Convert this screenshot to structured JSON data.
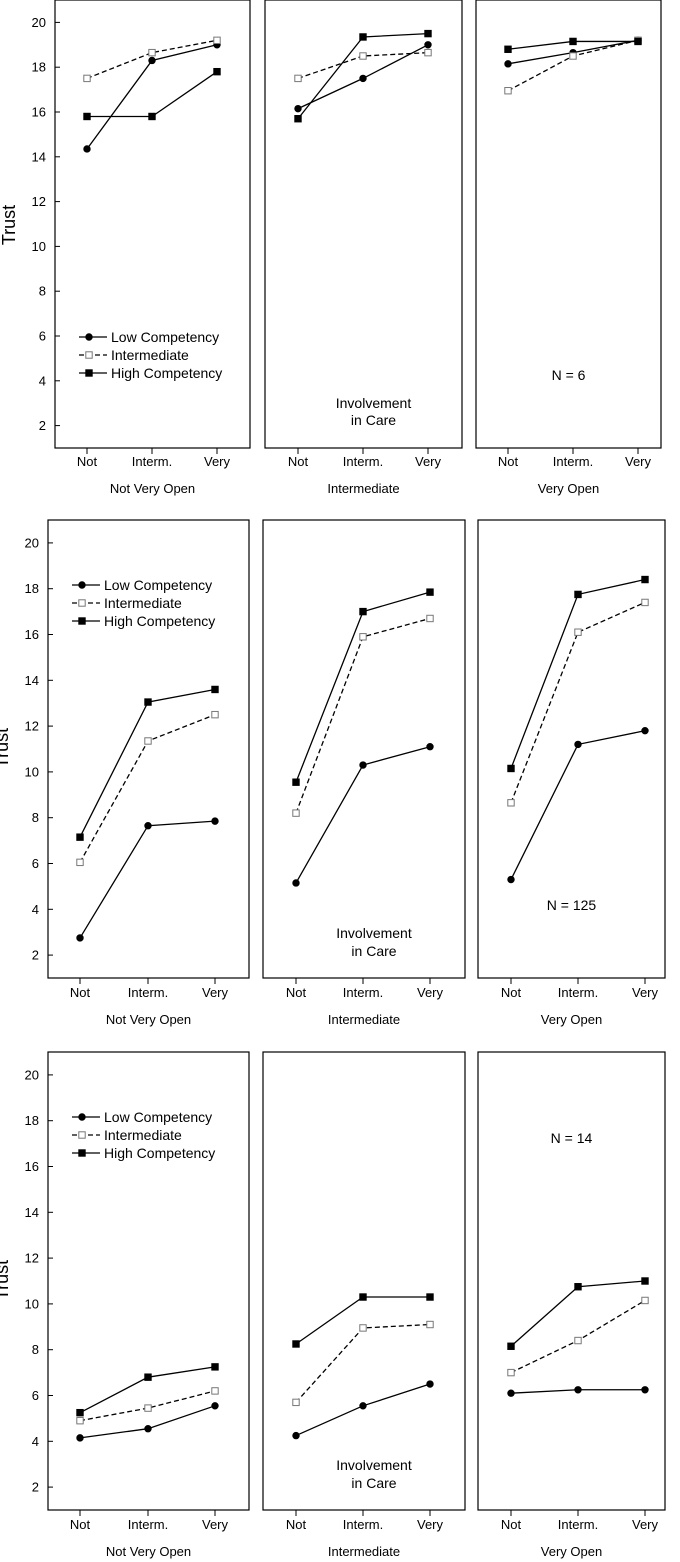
{
  "chart_data": [
    {
      "type": "line",
      "ylabel": "Trust",
      "ylim": [
        1,
        21
      ],
      "yticks": [
        2,
        4,
        6,
        8,
        10,
        12,
        14,
        16,
        18,
        20
      ],
      "categories": [
        "Not",
        "Interm.",
        "Very"
      ],
      "legend": {
        "placement": "lower-left",
        "entries": [
          "Low Competency",
          "Intermediate",
          "High Competency"
        ]
      },
      "center_annotation": [
        "Involvement",
        "in Care"
      ],
      "note": "N = 6",
      "panels": [
        {
          "group_label": "Not Very Open",
          "series": [
            {
              "name": "Low Competency",
              "values": [
                14.35,
                18.3,
                19.0
              ]
            },
            {
              "name": "Intermediate",
              "values": [
                17.5,
                18.65,
                19.2
              ]
            },
            {
              "name": "High Competency",
              "values": [
                15.8,
                15.8,
                17.8
              ]
            }
          ]
        },
        {
          "group_label": "Intermediate",
          "series": [
            {
              "name": "Low Competency",
              "values": [
                16.15,
                17.5,
                19.0
              ]
            },
            {
              "name": "Intermediate",
              "values": [
                17.5,
                18.5,
                18.65
              ]
            },
            {
              "name": "High Competency",
              "values": [
                15.7,
                19.35,
                19.5
              ]
            }
          ]
        },
        {
          "group_label": "Very Open",
          "series": [
            {
              "name": "Low Competency",
              "values": [
                18.15,
                18.65,
                19.2
              ]
            },
            {
              "name": "Intermediate",
              "values": [
                16.95,
                18.5,
                19.2
              ]
            },
            {
              "name": "High Competency",
              "values": [
                18.8,
                19.15,
                19.15
              ]
            }
          ]
        }
      ]
    },
    {
      "type": "line",
      "ylabel": "Trust",
      "ylim": [
        1,
        21
      ],
      "yticks": [
        2,
        4,
        6,
        8,
        10,
        12,
        14,
        16,
        18,
        20
      ],
      "categories": [
        "Not",
        "Interm.",
        "Very"
      ],
      "legend": {
        "placement": "upper-left",
        "entries": [
          "Low Competency",
          "Intermediate",
          "High Competency"
        ]
      },
      "center_annotation": [
        "Involvement",
        "in Care"
      ],
      "note": "N = 125",
      "panels": [
        {
          "group_label": "Not Very Open",
          "series": [
            {
              "name": "Low Competency",
              "values": [
                2.75,
                7.65,
                7.85
              ]
            },
            {
              "name": "Intermediate",
              "values": [
                6.05,
                11.35,
                12.5
              ]
            },
            {
              "name": "High Competency",
              "values": [
                7.15,
                13.05,
                13.6
              ]
            }
          ]
        },
        {
          "group_label": "Intermediate",
          "series": [
            {
              "name": "Low Competency",
              "values": [
                5.15,
                10.3,
                11.1
              ]
            },
            {
              "name": "Intermediate",
              "values": [
                8.2,
                15.9,
                16.7
              ]
            },
            {
              "name": "High Competency",
              "values": [
                9.55,
                17.0,
                17.85
              ]
            }
          ]
        },
        {
          "group_label": "Very Open",
          "series": [
            {
              "name": "Low Competency",
              "values": [
                5.3,
                11.2,
                11.8
              ]
            },
            {
              "name": "Intermediate",
              "values": [
                8.65,
                16.1,
                17.4
              ]
            },
            {
              "name": "High Competency",
              "values": [
                10.15,
                17.75,
                18.4
              ]
            }
          ]
        }
      ]
    },
    {
      "type": "line",
      "ylabel": "Trust",
      "ylim": [
        1,
        21
      ],
      "yticks": [
        2,
        4,
        6,
        8,
        10,
        12,
        14,
        16,
        18,
        20
      ],
      "categories": [
        "Not",
        "Interm.",
        "Very"
      ],
      "legend": {
        "placement": "upper-left",
        "entries": [
          "Low Competency",
          "Intermediate",
          "High Competency"
        ]
      },
      "center_annotation": [
        "Involvement",
        "in Care"
      ],
      "note": "N = 14",
      "panels": [
        {
          "group_label": "Not Very Open",
          "series": [
            {
              "name": "Low Competency",
              "values": [
                4.15,
                4.55,
                5.55
              ]
            },
            {
              "name": "Intermediate",
              "values": [
                4.9,
                5.45,
                6.2
              ]
            },
            {
              "name": "High Competency",
              "values": [
                5.25,
                6.8,
                7.25
              ]
            }
          ]
        },
        {
          "group_label": "Intermediate",
          "series": [
            {
              "name": "Low Competency",
              "values": [
                4.25,
                5.55,
                6.5
              ]
            },
            {
              "name": "Intermediate",
              "values": [
                5.7,
                8.95,
                9.1
              ]
            },
            {
              "name": "High Competency",
              "values": [
                8.25,
                10.3,
                10.3
              ]
            }
          ]
        },
        {
          "group_label": "Very Open",
          "series": [
            {
              "name": "Low Competency",
              "values": [
                6.1,
                6.25,
                6.25
              ]
            },
            {
              "name": "Intermediate",
              "values": [
                7.0,
                8.4,
                10.15
              ]
            },
            {
              "name": "High Competency",
              "values": [
                8.15,
                10.75,
                11.0
              ]
            }
          ]
        }
      ]
    }
  ]
}
